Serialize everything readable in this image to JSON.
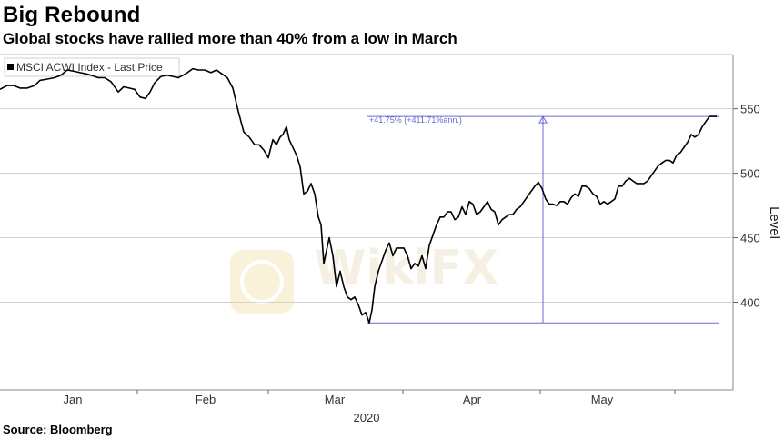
{
  "header": {
    "title": "Big Rebound",
    "subtitle": "Global stocks have rallied more than 40% from a low in March"
  },
  "footer": {
    "source": "Source: Bloomberg"
  },
  "watermark": {
    "text": "WikiFX"
  },
  "colors": {
    "line": "#000000",
    "annotation": "#6a6ad6",
    "grid": "#d0d0d0",
    "axis": "#555555"
  },
  "chart_data": {
    "type": "line",
    "legend": "MSCI ACWI Index - Last Price",
    "legend_position": "top-left",
    "ylabel": "Level",
    "ylim": [
      332,
      592
    ],
    "yticks": [
      400,
      450,
      500,
      550
    ],
    "x_months": [
      "Jan",
      "Feb",
      "Mar",
      "Apr",
      "May"
    ],
    "x_year": "2020",
    "grid": true,
    "annotation": {
      "text": "+41.75% (+411.71%ann.)",
      "from_value": 384,
      "to_value": 544
    },
    "series": [
      {
        "values": [
          [
            0,
            565
          ],
          [
            8,
            568
          ],
          [
            15,
            568
          ],
          [
            22,
            566
          ],
          [
            30,
            566
          ],
          [
            38,
            568
          ],
          [
            44,
            572
          ],
          [
            52,
            573
          ],
          [
            60,
            574
          ],
          [
            67,
            576
          ],
          [
            74,
            580
          ],
          [
            82,
            579
          ],
          [
            88,
            578
          ],
          [
            95,
            577
          ],
          [
            100,
            576
          ],
          [
            108,
            574
          ],
          [
            115,
            574
          ],
          [
            122,
            571
          ],
          [
            130,
            563
          ],
          [
            136,
            567
          ],
          [
            142,
            566
          ],
          [
            148,
            565
          ],
          [
            154,
            559
          ],
          [
            160,
            558
          ],
          [
            165,
            563
          ],
          [
            170,
            570
          ],
          [
            177,
            575
          ],
          [
            184,
            576
          ],
          [
            190,
            575
          ],
          [
            196,
            574
          ],
          [
            204,
            577
          ],
          [
            212,
            581
          ],
          [
            218,
            580
          ],
          [
            225,
            580
          ],
          [
            232,
            578
          ],
          [
            238,
            580
          ],
          [
            244,
            577
          ],
          [
            250,
            574
          ],
          [
            256,
            566
          ],
          [
            262,
            548
          ],
          [
            268,
            532
          ],
          [
            274,
            528
          ],
          [
            280,
            522
          ],
          [
            285,
            522
          ],
          [
            290,
            518
          ],
          [
            295,
            512
          ],
          [
            300,
            526
          ],
          [
            304,
            522
          ],
          [
            308,
            528
          ],
          [
            311,
            530
          ],
          [
            315,
            536
          ],
          [
            318,
            526
          ],
          [
            322,
            520
          ],
          [
            326,
            514
          ],
          [
            330,
            505
          ],
          [
            334,
            484
          ],
          [
            338,
            486
          ],
          [
            342,
            492
          ],
          [
            346,
            484
          ],
          [
            350,
            466
          ],
          [
            353,
            460
          ],
          [
            356,
            430
          ],
          [
            359,
            440
          ],
          [
            362,
            450
          ],
          [
            366,
            436
          ],
          [
            370,
            412
          ],
          [
            374,
            424
          ],
          [
            378,
            412
          ],
          [
            382,
            404
          ],
          [
            386,
            402
          ],
          [
            390,
            404
          ],
          [
            394,
            398
          ],
          [
            398,
            390
          ],
          [
            402,
            392
          ],
          [
            406,
            384
          ],
          [
            409,
            394
          ],
          [
            412,
            412
          ],
          [
            416,
            424
          ],
          [
            420,
            432
          ],
          [
            424,
            440
          ],
          [
            428,
            446
          ],
          [
            432,
            436
          ],
          [
            436,
            442
          ],
          [
            440,
            442
          ],
          [
            444,
            442
          ],
          [
            448,
            436
          ],
          [
            452,
            426
          ],
          [
            456,
            430
          ],
          [
            460,
            428
          ],
          [
            464,
            436
          ],
          [
            468,
            426
          ],
          [
            472,
            444
          ],
          [
            476,
            452
          ],
          [
            480,
            460
          ],
          [
            484,
            466
          ],
          [
            488,
            466
          ],
          [
            492,
            470
          ],
          [
            496,
            470
          ],
          [
            500,
            464
          ],
          [
            504,
            466
          ],
          [
            508,
            474
          ],
          [
            512,
            468
          ],
          [
            516,
            478
          ],
          [
            520,
            476
          ],
          [
            524,
            468
          ],
          [
            528,
            470
          ],
          [
            532,
            474
          ],
          [
            536,
            478
          ],
          [
            540,
            472
          ],
          [
            544,
            470
          ],
          [
            548,
            460
          ],
          [
            552,
            464
          ],
          [
            556,
            466
          ],
          [
            560,
            468
          ],
          [
            564,
            468
          ],
          [
            568,
            472
          ],
          [
            572,
            474
          ],
          [
            576,
            478
          ],
          [
            580,
            482
          ],
          [
            584,
            486
          ],
          [
            588,
            490
          ],
          [
            592,
            493
          ],
          [
            596,
            488
          ],
          [
            600,
            480
          ],
          [
            604,
            476
          ],
          [
            608,
            476
          ],
          [
            612,
            475
          ],
          [
            616,
            478
          ],
          [
            620,
            478
          ],
          [
            624,
            476
          ],
          [
            628,
            481
          ],
          [
            632,
            484
          ],
          [
            636,
            482
          ],
          [
            640,
            490
          ],
          [
            644,
            490
          ],
          [
            648,
            488
          ],
          [
            652,
            484
          ],
          [
            656,
            482
          ],
          [
            660,
            476
          ],
          [
            664,
            478
          ],
          [
            668,
            476
          ],
          [
            672,
            478
          ],
          [
            676,
            480
          ],
          [
            680,
            490
          ],
          [
            684,
            490
          ],
          [
            688,
            494
          ],
          [
            692,
            496
          ],
          [
            696,
            494
          ],
          [
            700,
            492
          ],
          [
            704,
            492
          ],
          [
            708,
            492
          ],
          [
            712,
            494
          ],
          [
            716,
            498
          ],
          [
            720,
            502
          ],
          [
            724,
            506
          ],
          [
            728,
            508
          ],
          [
            732,
            510
          ],
          [
            736,
            510
          ],
          [
            740,
            508
          ],
          [
            744,
            514
          ],
          [
            748,
            516
          ],
          [
            752,
            520
          ],
          [
            756,
            524
          ],
          [
            760,
            530
          ],
          [
            764,
            528
          ],
          [
            768,
            530
          ],
          [
            772,
            536
          ],
          [
            776,
            540
          ],
          [
            780,
            544
          ],
          [
            784,
            544
          ],
          [
            788,
            544
          ]
        ]
      }
    ]
  }
}
